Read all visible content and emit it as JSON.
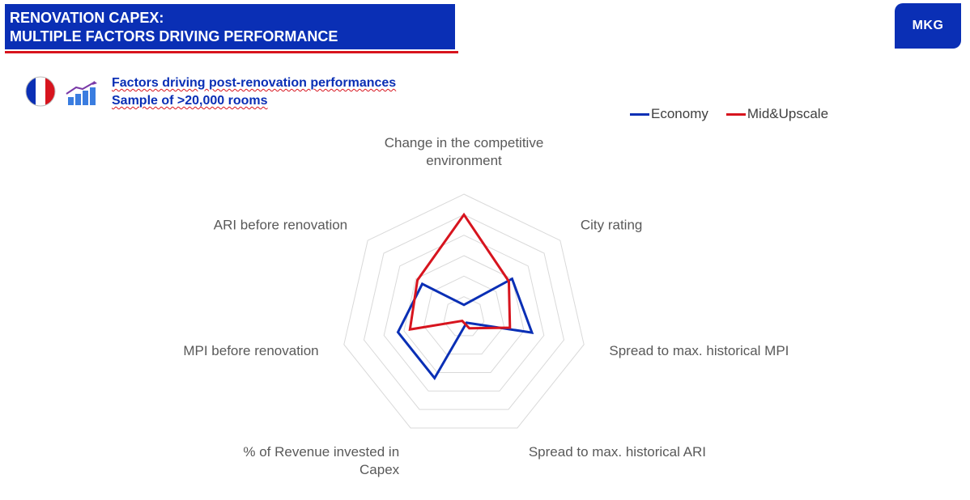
{
  "header": {
    "title_line1": "RENOVATION CAPEX:",
    "title_line2": "MULTIPLE FACTORS DRIVING PERFORMANCE",
    "logo_text": "MKG",
    "brand_color": "#0a2fb5",
    "accent_color": "#d7141e"
  },
  "subtitle": {
    "line1": "Factors driving post-renovation performances",
    "line2": "Sample of >20,000 rooms"
  },
  "icons": {
    "flag": "france-flag-icon",
    "chart": "growth-bar-chart-icon"
  },
  "chart_data": {
    "type": "radar",
    "axes": [
      [
        "Change in the competitive",
        "environment"
      ],
      [
        "City rating"
      ],
      [
        "Spread to max. historical MPI"
      ],
      [
        "Spread to max. historical ARI"
      ],
      [
        "% of Revenue invested in",
        "Capex"
      ],
      [
        "MPI before renovation"
      ],
      [
        "ARI before renovation"
      ]
    ],
    "range": [
      0,
      6
    ],
    "rings": 6,
    "grid": true,
    "legend_position": "top-right",
    "series": [
      {
        "name": "Economy",
        "color": "#0a2fb5",
        "values": [
          0.6,
          3.0,
          3.4,
          0.3,
          3.3,
          3.3,
          2.6
        ]
      },
      {
        "name": "Mid&Upscale",
        "color": "#d7141e",
        "values": [
          5.0,
          2.8,
          2.3,
          0.6,
          0.2,
          2.7,
          2.9
        ]
      }
    ]
  }
}
